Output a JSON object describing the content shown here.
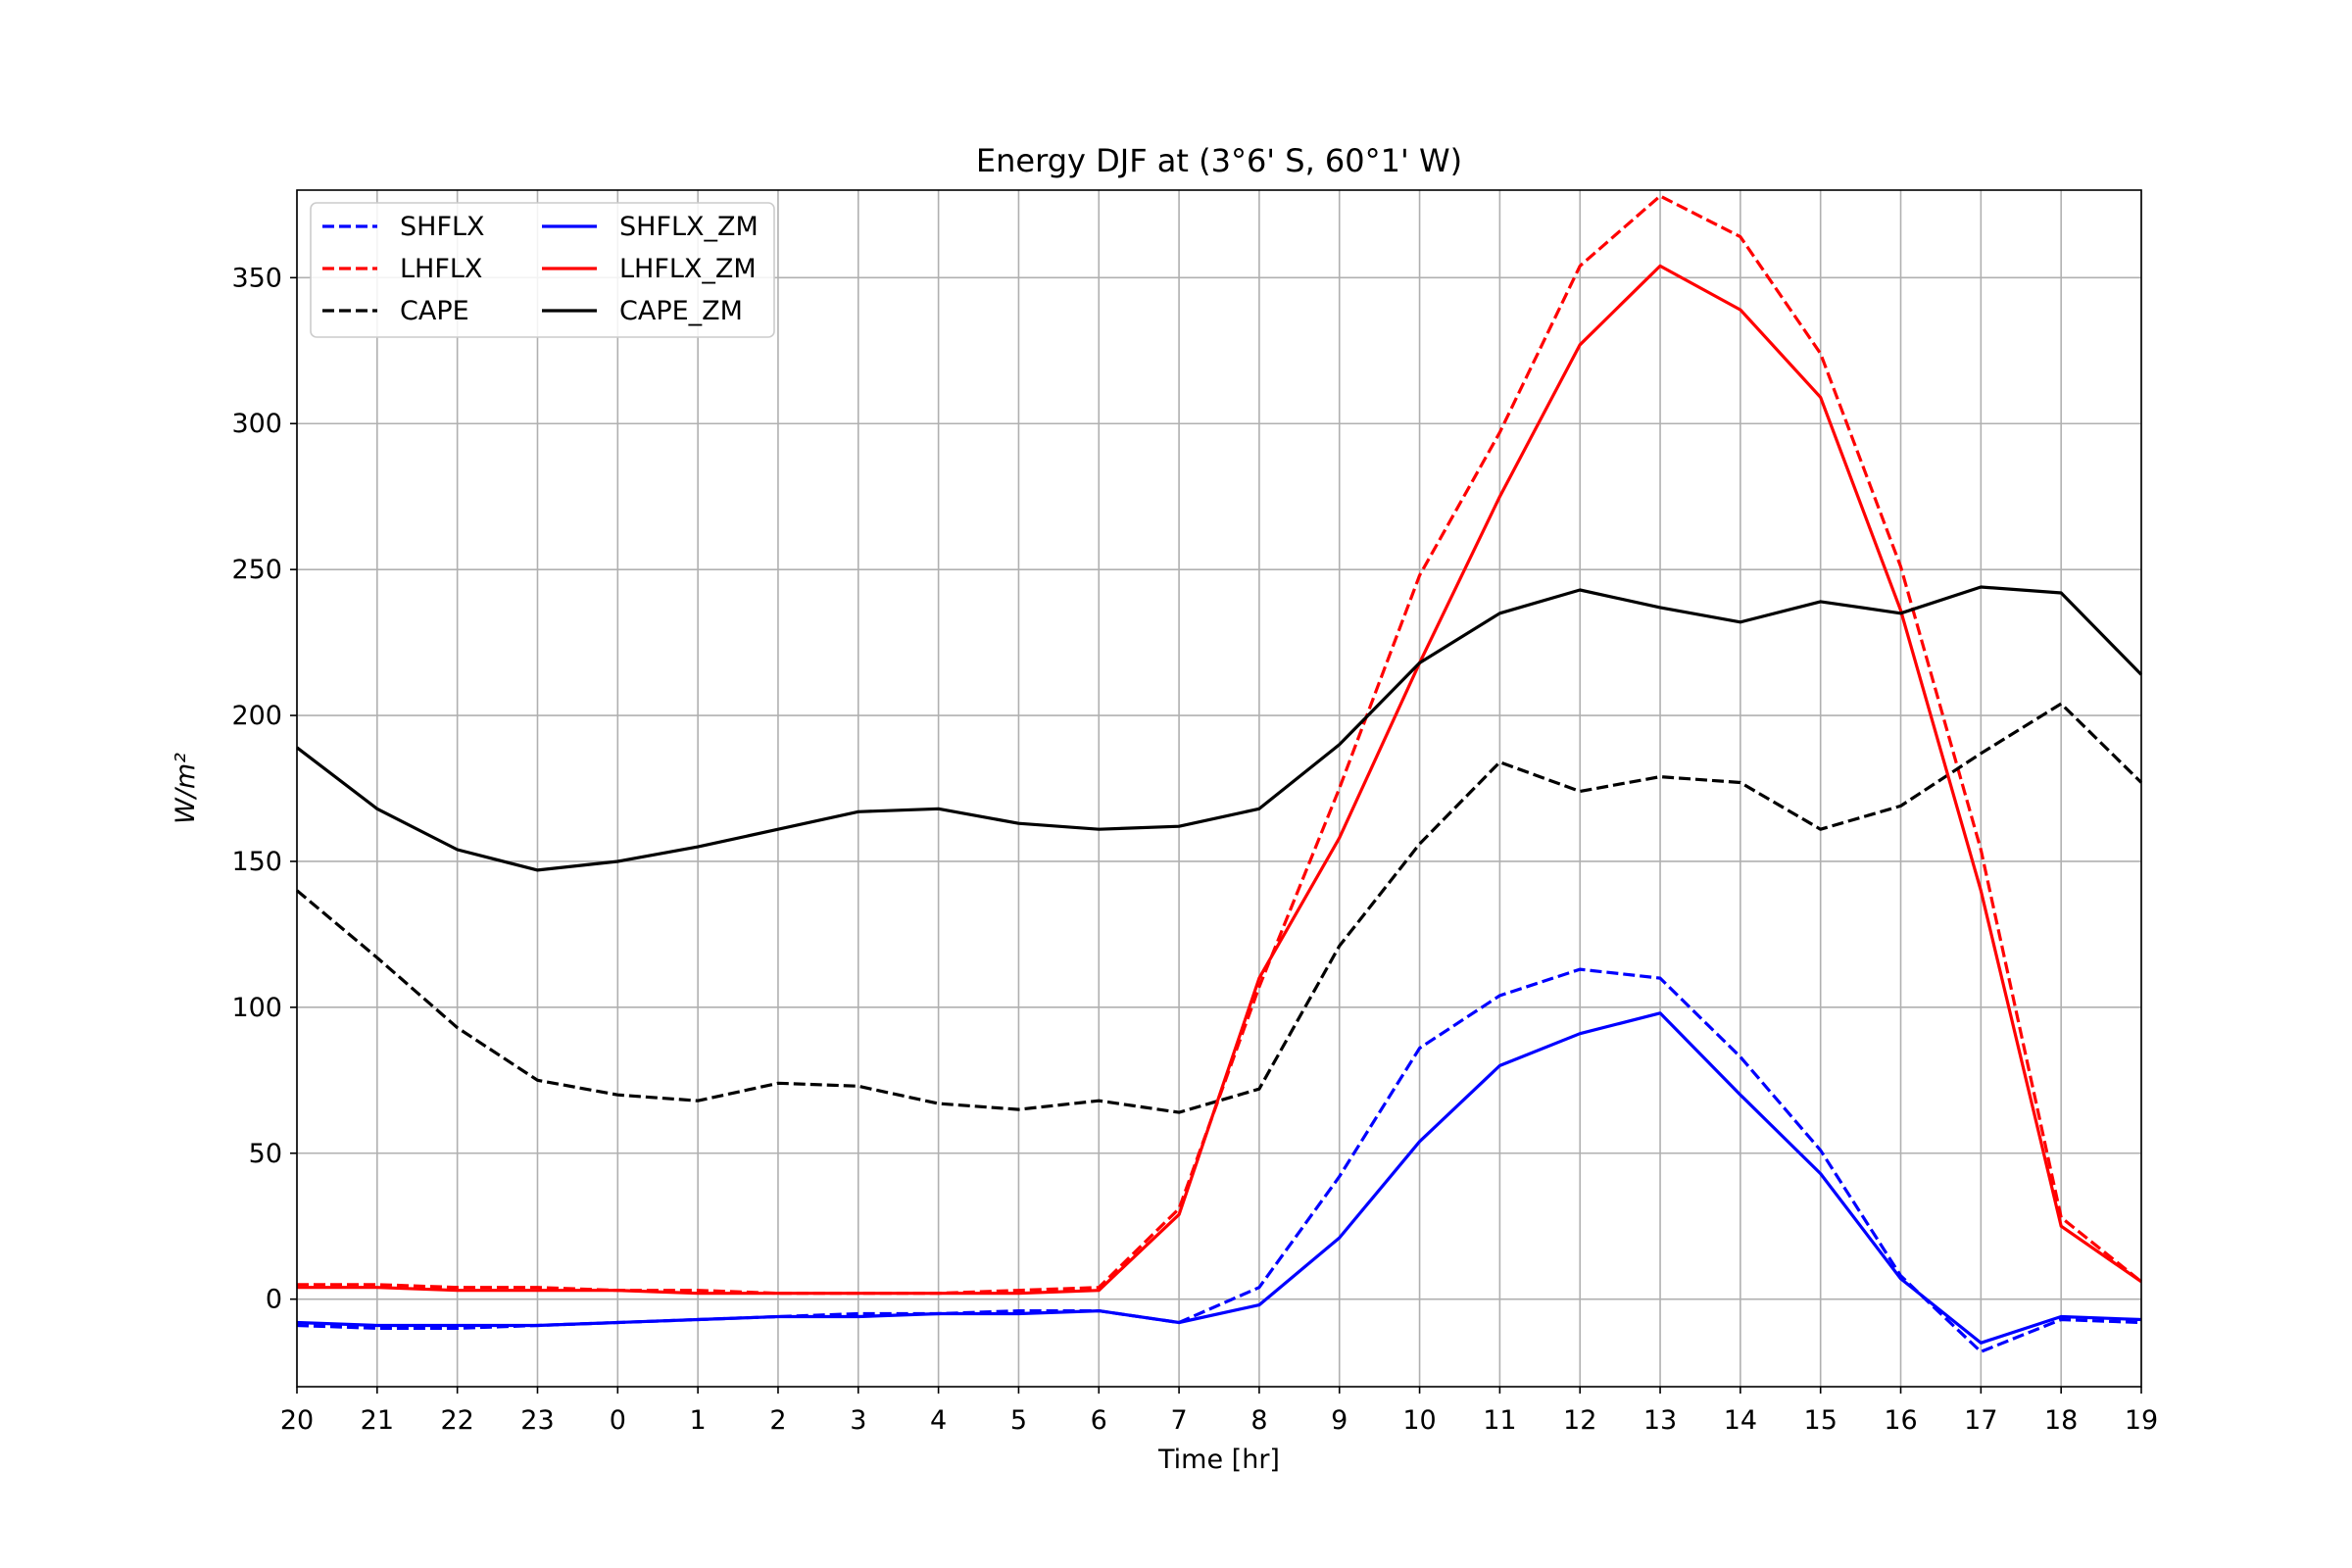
{
  "chart_data": {
    "type": "line",
    "title": "Energy DJF at (3°6' S, 60°1' W)",
    "xlabel": "Time [hr]",
    "ylabel": "W/m²",
    "x_tick_labels": [
      "20",
      "21",
      "22",
      "23",
      "0",
      "1",
      "2",
      "3",
      "4",
      "5",
      "6",
      "7",
      "8",
      "9",
      "10",
      "11",
      "12",
      "13",
      "14",
      "15",
      "16",
      "17",
      "18",
      "19"
    ],
    "y_ticks": [
      0,
      50,
      100,
      150,
      200,
      250,
      300,
      350
    ],
    "ylim": [
      -30,
      380
    ],
    "grid": true,
    "legend_position": "upper left",
    "series": [
      {
        "name": "SHFLX",
        "color": "#0000ff",
        "style": "dashed",
        "values": [
          -9,
          -10,
          -10,
          -9,
          -8,
          -7,
          -6,
          -5,
          -5,
          -4,
          -4,
          -8,
          4,
          42,
          86,
          104,
          113,
          110,
          83,
          51,
          8,
          -18,
          -7,
          -8
        ]
      },
      {
        "name": "LHFLX",
        "color": "#ff0000",
        "style": "dashed",
        "values": [
          5,
          5,
          4,
          4,
          3,
          3,
          2,
          2,
          2,
          3,
          4,
          31,
          107,
          175,
          248,
          297,
          354,
          378,
          364,
          324,
          251,
          154,
          28,
          6
        ]
      },
      {
        "name": "CAPE",
        "color": "#000000",
        "style": "dashed",
        "values": [
          140,
          117,
          93,
          75,
          70,
          68,
          74,
          73,
          67,
          65,
          68,
          64,
          72,
          121,
          156,
          184,
          174,
          179,
          177,
          161,
          169,
          187,
          204,
          177
        ]
      },
      {
        "name": "SHFLX_ZM",
        "color": "#0000ff",
        "style": "solid",
        "values": [
          -8,
          -9,
          -9,
          -9,
          -8,
          -7,
          -6,
          -6,
          -5,
          -5,
          -4,
          -8,
          -2,
          21,
          54,
          80,
          91,
          98,
          70,
          43,
          7,
          -15,
          -6,
          -7
        ]
      },
      {
        "name": "LHFLX_ZM",
        "color": "#ff0000",
        "style": "solid",
        "values": [
          4,
          4,
          3,
          3,
          3,
          2,
          2,
          2,
          2,
          2,
          3,
          29,
          110,
          158,
          218,
          275,
          327,
          354,
          339,
          309,
          236,
          140,
          25,
          6
        ]
      },
      {
        "name": "CAPE_ZM",
        "color": "#000000",
        "style": "solid",
        "values": [
          189,
          168,
          154,
          147,
          150,
          155,
          161,
          167,
          168,
          163,
          161,
          162,
          168,
          190,
          218,
          235,
          243,
          237,
          232,
          239,
          235,
          244,
          242,
          214
        ]
      }
    ]
  }
}
